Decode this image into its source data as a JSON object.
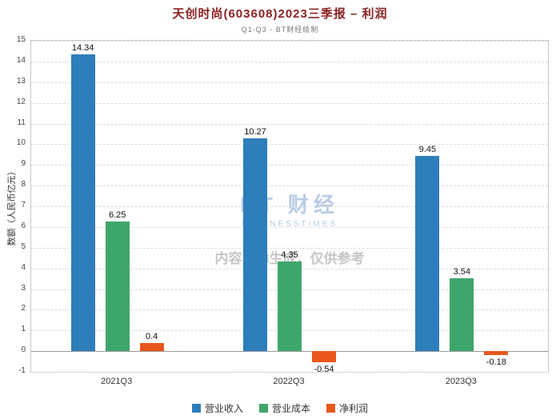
{
  "title": "天创时尚(603608)2023三季报 – 利润",
  "subtitle": "Q1-Q3 - BT财经绘制",
  "watermark": {
    "logo_text": "BT 财经",
    "logo_sub": "BUSINESSTIMES",
    "disclaimer": "内容由AI生成，仅供参考"
  },
  "chart_data": {
    "type": "bar",
    "title": "天创时尚(603608)2023三季报 – 利润",
    "subtitle": "Q1-Q3 - BT财经绘制",
    "categories": [
      "2021Q3",
      "2022Q3",
      "2023Q3"
    ],
    "series": [
      {
        "name": "营业收入",
        "color": "#2e7ebb",
        "values": [
          14.34,
          10.27,
          9.45
        ]
      },
      {
        "name": "营业成本",
        "color": "#3fa66b",
        "values": [
          6.25,
          4.35,
          3.54
        ]
      },
      {
        "name": "净利润",
        "color": "#e8571c",
        "values": [
          0.4,
          -0.54,
          -0.18
        ]
      }
    ],
    "xlabel": "",
    "ylabel": "数额（人民币亿元）",
    "ylim": [
      -1,
      15
    ],
    "ytick_step": 1,
    "grid": true,
    "legend_position": "bottom"
  }
}
